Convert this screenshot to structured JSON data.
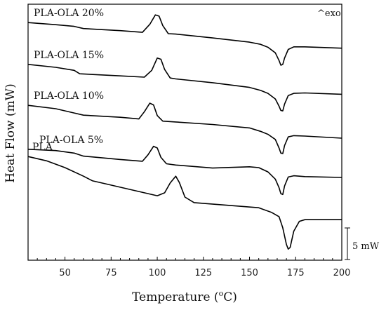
{
  "chart_data": {
    "type": "line",
    "xlabel": "Temperature (",
    "xlabel_sup": "o",
    "xlabel_end": "C)",
    "ylabel": "Heat Flow (mW)",
    "xlim": [
      30,
      200
    ],
    "xticks": [
      50,
      75,
      100,
      125,
      150,
      175,
      200
    ],
    "yticks_shown": false,
    "grid": false,
    "exo_label": "^exo",
    "scale_bar_label": "5 mW",
    "scale_bar_value_mW": 5,
    "series": [
      {
        "name": "PLA-OLA 20%",
        "x": [
          30,
          45,
          55,
          60,
          80,
          92,
          96,
          99,
          101,
          103,
          106,
          110,
          130,
          150,
          156,
          160,
          164,
          166,
          167,
          168,
          169,
          171,
          174,
          180,
          200
        ],
        "y": [
          55.7,
          55.2,
          54.8,
          54.3,
          53.8,
          53.4,
          55.3,
          57.5,
          57.2,
          55.0,
          53.1,
          53.0,
          52.1,
          51.1,
          50.6,
          49.9,
          48.6,
          46.8,
          45.7,
          45.9,
          47.4,
          49.4,
          50.0,
          50.0,
          49.7
        ]
      },
      {
        "name": "PLA-OLA 15%",
        "x": [
          30,
          45,
          55,
          58,
          80,
          93,
          97,
          100,
          102,
          104,
          107,
          110,
          130,
          150,
          156,
          160,
          164,
          166,
          167,
          168,
          169,
          171,
          174,
          180,
          200
        ],
        "y": [
          45.9,
          45.2,
          44.5,
          43.7,
          43.2,
          42.9,
          44.5,
          47.4,
          47.1,
          44.7,
          42.7,
          42.5,
          41.6,
          40.5,
          39.8,
          39.1,
          37.8,
          36.1,
          35.1,
          35.0,
          36.6,
          38.6,
          39.1,
          39.2,
          38.9
        ]
      },
      {
        "name": "PLA-OLA 10%",
        "x": [
          30,
          45,
          55,
          60,
          80,
          90,
          93,
          96,
          98,
          100,
          103,
          110,
          130,
          150,
          156,
          160,
          164,
          166,
          167,
          168,
          169,
          171,
          174,
          180,
          200
        ],
        "y": [
          36.3,
          35.5,
          34.5,
          34.0,
          33.5,
          33.1,
          34.8,
          36.8,
          36.4,
          33.9,
          32.6,
          32.4,
          31.8,
          31.0,
          30.2,
          29.5,
          28.3,
          26.3,
          25.1,
          25.0,
          26.9,
          28.9,
          29.2,
          29.1,
          28.6
        ]
      },
      {
        "name": "PLA-OLA 5%",
        "x": [
          30,
          45,
          55,
          60,
          80,
          92,
          95,
          98,
          100,
          102,
          105,
          110,
          130,
          150,
          155,
          160,
          164,
          166,
          167,
          168,
          169,
          171,
          174,
          180,
          200
        ],
        "y": [
          26.0,
          25.7,
          25.1,
          24.4,
          23.6,
          23.2,
          24.7,
          26.7,
          26.3,
          24.1,
          22.6,
          22.3,
          21.6,
          21.9,
          21.7,
          20.7,
          19.0,
          17.0,
          15.6,
          15.4,
          17.4,
          19.5,
          19.8,
          19.6,
          19.4
        ]
      },
      {
        "name": "PLA",
        "x": [
          30,
          40,
          50,
          60,
          65,
          70,
          85,
          100,
          104,
          107,
          110,
          112,
          115,
          120,
          140,
          155,
          162,
          166,
          168,
          170,
          171,
          172,
          174,
          177,
          180,
          200
        ],
        "y": [
          24.3,
          23.3,
          21.7,
          19.7,
          18.6,
          18.1,
          16.6,
          15.1,
          15.8,
          18.1,
          19.7,
          18.2,
          14.8,
          13.5,
          12.8,
          12.3,
          11.2,
          10.2,
          7.6,
          3.7,
          2.6,
          3.0,
          6.8,
          9.1,
          9.5,
          9.5
        ]
      }
    ]
  }
}
